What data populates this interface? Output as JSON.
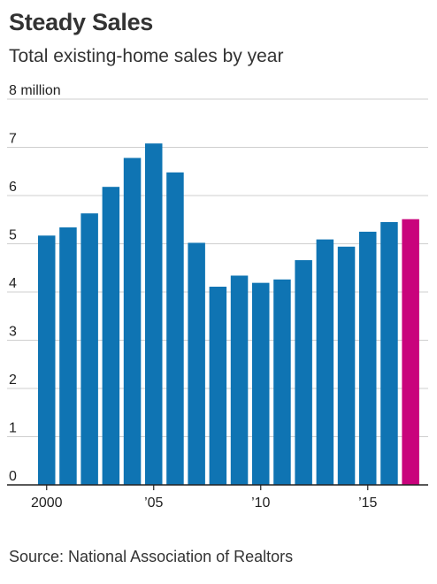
{
  "header": {
    "title": "Steady Sales",
    "subtitle": "Total existing-home sales by year"
  },
  "footer": {
    "source": "Source: National Association of Realtors"
  },
  "colors": {
    "bar": "#0f74b3",
    "highlight": "#c9037c",
    "grid": "#cfcfcf",
    "baseline": "#222222"
  },
  "chart_data": {
    "type": "bar",
    "title": "Steady Sales",
    "subtitle": "Total existing-home sales by year",
    "ylabel": "",
    "xlabel": "",
    "ylim": [
      0,
      8
    ],
    "y_ticks": [
      {
        "value": 0,
        "label": "0"
      },
      {
        "value": 1,
        "label": "1"
      },
      {
        "value": 2,
        "label": "2"
      },
      {
        "value": 3,
        "label": "3"
      },
      {
        "value": 4,
        "label": "4"
      },
      {
        "value": 5,
        "label": "5"
      },
      {
        "value": 6,
        "label": "6"
      },
      {
        "value": 7,
        "label": "7"
      },
      {
        "value": 8,
        "label": "8 million"
      }
    ],
    "x_ticks": [
      {
        "year": 2000,
        "label": "2000"
      },
      {
        "year": 2005,
        "label": "’05"
      },
      {
        "year": 2010,
        "label": "’10"
      },
      {
        "year": 2015,
        "label": "’15"
      }
    ],
    "categories": [
      2000,
      2001,
      2002,
      2003,
      2004,
      2005,
      2006,
      2007,
      2008,
      2009,
      2010,
      2011,
      2012,
      2013,
      2014,
      2015,
      2016,
      2017
    ],
    "values": [
      5.17,
      5.34,
      5.63,
      6.18,
      6.78,
      7.08,
      6.48,
      5.02,
      4.11,
      4.34,
      4.19,
      4.26,
      4.66,
      5.09,
      4.94,
      5.25,
      5.45,
      5.51
    ],
    "highlight_index": 17,
    "grid": true,
    "legend": "none"
  }
}
